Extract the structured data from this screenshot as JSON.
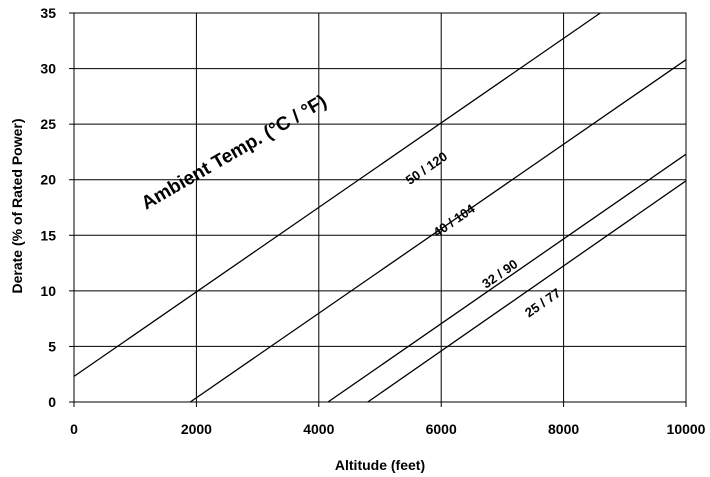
{
  "chart_data": {
    "type": "line",
    "title": "",
    "xlabel": "Altitude (feet)",
    "ylabel": "Derate (% of Rated Power)",
    "xlim": [
      0,
      10000
    ],
    "ylim": [
      0,
      35
    ],
    "x_ticks": [
      "0",
      "2000",
      "4000",
      "6000",
      "8000",
      "10000"
    ],
    "y_ticks": [
      "0",
      "5",
      "10",
      "15",
      "20",
      "25",
      "30",
      "35"
    ],
    "grid": true,
    "legend": "none",
    "annotation": "Ambient Temp. (°C / °F)",
    "series": [
      {
        "name": "50 / 120",
        "x": [
          0,
          8600
        ],
        "y": [
          2.3,
          35
        ]
      },
      {
        "name": "40 / 104",
        "x": [
          1900,
          10000
        ],
        "y": [
          0,
          30.8
        ]
      },
      {
        "name": "32 / 90",
        "x": [
          4150,
          10000
        ],
        "y": [
          0,
          22.3
        ]
      },
      {
        "name": "25 / 77",
        "x": [
          4800,
          10000
        ],
        "y": [
          0,
          19.9
        ]
      }
    ]
  }
}
